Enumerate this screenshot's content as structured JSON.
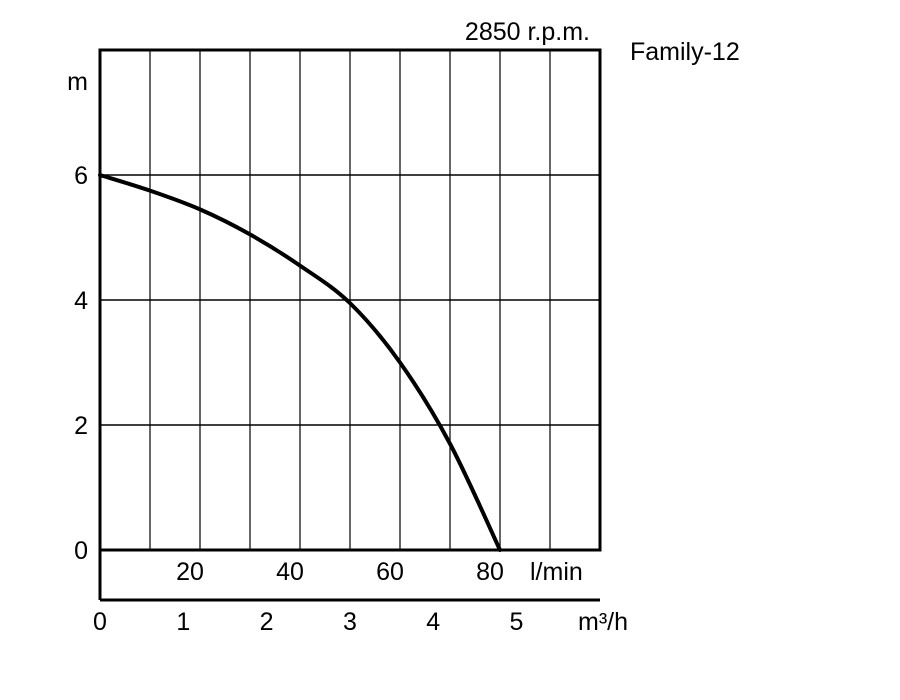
{
  "chart_data": {
    "type": "line",
    "title": "Family-12",
    "subtitle": "2850 r.p.m.",
    "ylabel": "m",
    "xlabel_primary": "l/min",
    "xlabel_secondary": "m³/h",
    "ylim": [
      0,
      8
    ],
    "xlim_lmin": [
      0,
      100
    ],
    "xlim_m3h": [
      0,
      6
    ],
    "y_ticks": [
      "0",
      "2",
      "4",
      "6"
    ],
    "y_tick_values": [
      0,
      2,
      4,
      6
    ],
    "x_ticks_lmin": [
      "20",
      "40",
      "60",
      "80"
    ],
    "x_tick_values_lmin": [
      20,
      40,
      60,
      80
    ],
    "x_ticks_m3h": [
      "0",
      "1",
      "2",
      "3",
      "4",
      "5"
    ],
    "x_tick_values_m3h": [
      0,
      1,
      2,
      3,
      4,
      5
    ],
    "grid": true,
    "series": [
      {
        "x": [
          0,
          10,
          20,
          30,
          40,
          50,
          60,
          70,
          80
        ],
        "y": [
          6.0,
          5.75,
          5.45,
          5.05,
          4.55,
          3.95,
          3.0,
          1.7,
          0.0
        ]
      }
    ]
  }
}
